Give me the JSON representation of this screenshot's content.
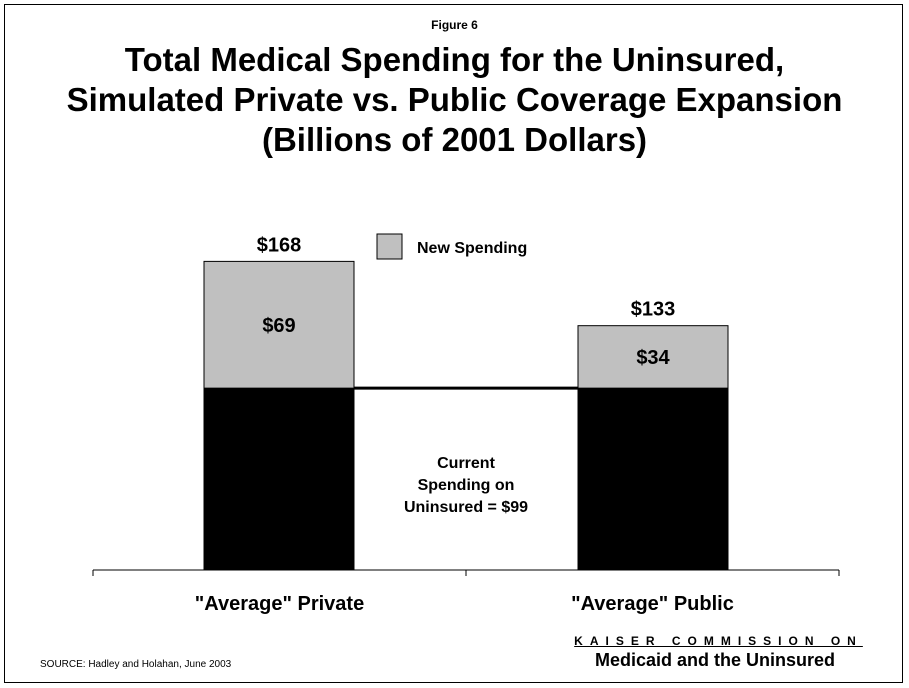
{
  "header": {
    "figure_label": "Figure 6",
    "title_lines": [
      "Total Medical Spending for the Uninsured,",
      "Simulated Private vs. Public Coverage Expansion",
      "(Billions of 2001 Dollars)"
    ]
  },
  "chart_data": {
    "type": "bar",
    "stacked": true,
    "categories": [
      "\"Average\" Private",
      "\"Average\" Public"
    ],
    "series": [
      {
        "key": "current",
        "values": [
          99,
          99
        ],
        "color": "#000000"
      },
      {
        "key": "new",
        "name": "New Spending",
        "values": [
          69,
          34
        ],
        "color": "#c0c0c0"
      }
    ],
    "segment_labels": [
      "$69",
      "$34"
    ],
    "total_labels": [
      "$168",
      "$133"
    ],
    "annotation": [
      "Current",
      "Spending on",
      "Uninsured = $99"
    ],
    "legend": {
      "label": "New Spending",
      "color": "#c0c0c0",
      "placement": "top-center"
    },
    "grid": false
  },
  "footer": {
    "source": "SOURCE: Hadley and Holahan, June 2003",
    "brand_top": "KAISER COMMISSION ON",
    "brand_bottom": "Medicaid and the Uninsured"
  }
}
